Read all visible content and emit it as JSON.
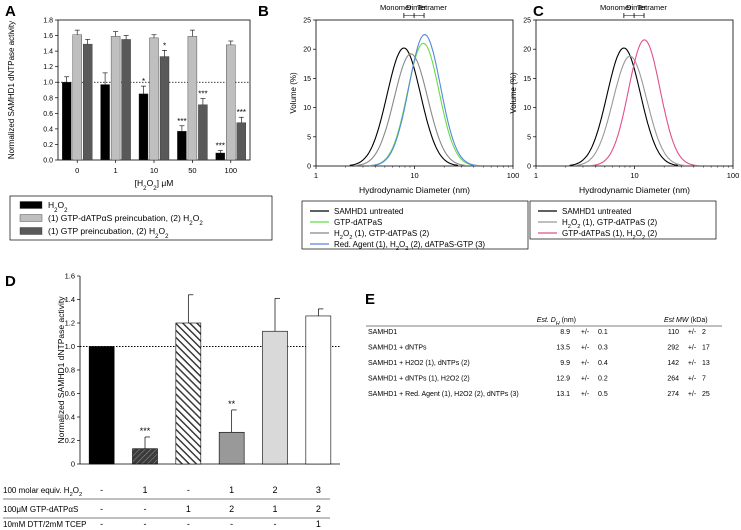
{
  "panel_letters": [
    "A",
    "B",
    "C",
    "D",
    "E"
  ],
  "chart_data": [
    {
      "panel": "A",
      "type": "bar",
      "ylabel": "Normalized SAMHD1 dNTPase activity",
      "xlabel_parts": [
        "[H",
        "2",
        "O",
        "2",
        "] μM"
      ],
      "categories": [
        "0",
        "1",
        "10",
        "50",
        "100"
      ],
      "ylim": [
        0,
        1.8
      ],
      "yticks": [
        "0.0",
        "0.2",
        "0.4",
        "0.6",
        "0.8",
        "1.0",
        "1.2",
        "1.4",
        "1.6",
        "1.8"
      ],
      "reference_line": 1.0,
      "series": [
        {
          "name": "H2O2",
          "color": "#000000",
          "values": [
            1.0,
            0.97,
            0.85,
            0.37,
            0.09
          ],
          "errors": [
            0.07,
            0.15,
            0.1,
            0.07,
            0.03
          ],
          "stars": [
            "",
            "",
            "*",
            "***",
            "***"
          ]
        },
        {
          "name": "(1) GTP-dATPαS preincubation, (2) H2O2",
          "color": "#bfbfbf",
          "values": [
            1.61,
            1.59,
            1.57,
            1.59,
            1.48
          ],
          "errors": [
            0.06,
            0.06,
            0.04,
            0.08,
            0.05
          ],
          "stars": [
            "",
            "",
            "",
            "",
            ""
          ]
        },
        {
          "name": "(1) GTP preincubation, (2) H2O2",
          "color": "#595959",
          "values": [
            1.49,
            1.55,
            1.33,
            0.71,
            0.48
          ],
          "errors": [
            0.06,
            0.05,
            0.08,
            0.08,
            0.07
          ],
          "stars": [
            "",
            "",
            "*",
            "***",
            "***"
          ]
        }
      ],
      "legend": [
        {
          "parts": [
            "H",
            "2",
            "O",
            "2"
          ]
        },
        {
          "parts": [
            "(1) GTP-dATPαS preincubation, (2) H",
            "2",
            "O",
            "2"
          ]
        },
        {
          "parts": [
            "(1) GTP preincubation, (2) H",
            "2",
            "O",
            "2"
          ]
        }
      ]
    },
    {
      "panel": "B",
      "type": "line",
      "xscale": "log",
      "xlabel": "Hydrodynamic Diameter (nm)",
      "ylabel": "Volume (%)",
      "xlim": [
        1,
        100
      ],
      "ylim": [
        0,
        25
      ],
      "xticks": [
        "1",
        "10",
        "100"
      ],
      "yticks": [
        "0",
        "5",
        "10",
        "15",
        "20",
        "25"
      ],
      "markers": [
        {
          "label": "Monomer",
          "x": 7.8
        },
        {
          "label": "Dimer",
          "x": 9.9
        },
        {
          "label": "Tetramer",
          "x": 12.5
        }
      ],
      "series": [
        {
          "name": "SAMHD1 untreated",
          "color": "#000000",
          "peak_x": 7.8,
          "peak_y": 20.2,
          "log_sigma": 0.17
        },
        {
          "name": "GTP-dATPaS",
          "color": "#66dd44",
          "peak_x": 12.3,
          "peak_y": 21.0,
          "log_sigma": 0.16
        },
        {
          "name": "H2O2 (1), GTP-dATPaS (2)",
          "color": "#888888",
          "peak_x": 9.2,
          "peak_y": 19.2,
          "log_sigma": 0.17
        },
        {
          "name": "Red. Agent (1), H2O2 (2), dATPaS-GTP (3)",
          "color": "#5588dd",
          "peak_x": 12.7,
          "peak_y": 22.5,
          "log_sigma": 0.16
        }
      ],
      "legend": [
        {
          "parts": [
            "SAMHD1 untreated"
          ]
        },
        {
          "parts": [
            "GTP-dATPaS"
          ]
        },
        {
          "parts": [
            "H",
            "2",
            "O",
            "2",
            " (1), GTP-dATPaS (2)"
          ]
        },
        {
          "parts": [
            "Red. Agent (1), H",
            "2",
            "O",
            "2",
            " (2), dATPaS-GTP (3)"
          ]
        }
      ]
    },
    {
      "panel": "C",
      "type": "line",
      "xscale": "log",
      "xlabel": "Hydrodynamic Diameter (nm)",
      "ylabel": "Volume (%)",
      "xlim": [
        1,
        100
      ],
      "ylim": [
        0,
        25
      ],
      "xticks": [
        "1",
        "10",
        "100"
      ],
      "yticks": [
        "0",
        "5",
        "10",
        "15",
        "20",
        "25"
      ],
      "markers": [
        {
          "label": "Monomer",
          "x": 7.8
        },
        {
          "label": "Dimer",
          "x": 9.9
        },
        {
          "label": "Tetramer",
          "x": 12.5
        }
      ],
      "series": [
        {
          "name": "SAMHD1 untreated",
          "color": "#000000",
          "peak_x": 7.8,
          "peak_y": 20.2,
          "log_sigma": 0.17
        },
        {
          "name": "H2O2 (1), GTP-dATPaS (2)",
          "color": "#999999",
          "peak_x": 9.0,
          "peak_y": 18.8,
          "log_sigma": 0.17
        },
        {
          "name": "GTP-dATPaS (1), H2O2 (2)",
          "color": "#e0508c",
          "peak_x": 12.6,
          "peak_y": 21.6,
          "log_sigma": 0.16
        }
      ],
      "legend": [
        {
          "parts": [
            "SAMHD1 untreated"
          ]
        },
        {
          "parts": [
            "H",
            "2",
            "O",
            "2",
            " (1), GTP-dATPaS (2)"
          ]
        },
        {
          "parts": [
            "GTP-dATPaS (1), H",
            "2",
            "O",
            "2",
            " (2)"
          ]
        }
      ]
    },
    {
      "panel": "D",
      "type": "bar",
      "ylabel": "Normalized SAMHD1 dNTPase activity",
      "ylim": [
        0,
        1.6
      ],
      "yticks": [
        "0",
        "0.2",
        "0.4",
        "0.6",
        "0.8",
        "1.0",
        "1.2",
        "1.4",
        "1.6"
      ],
      "reference_line": 1.0,
      "bars": [
        {
          "value": 1.0,
          "error": 0.0,
          "fill": "#000000",
          "pattern": "",
          "stars": ""
        },
        {
          "value": 0.13,
          "error": 0.1,
          "fill": "#4a4a4a",
          "pattern": "hatch-dense",
          "stars": "***"
        },
        {
          "value": 1.2,
          "error": 0.24,
          "fill": "#5a5a5a",
          "pattern": "hatch-stripes",
          "stars": ""
        },
        {
          "value": 0.27,
          "error": 0.19,
          "fill": "#999999",
          "pattern": "",
          "stars": "**"
        },
        {
          "value": 1.13,
          "error": 0.28,
          "fill": "#d9d9d9",
          "pattern": "",
          "stars": ""
        },
        {
          "value": 1.26,
          "error": 0.06,
          "fill": "#ffffff",
          "pattern": "",
          "stars": ""
        }
      ],
      "conditions": [
        {
          "label_parts": [
            "100 molar equiv. H",
            "2",
            "O",
            "2"
          ],
          "values": [
            "-",
            "1",
            "-",
            "1",
            "2",
            "3"
          ]
        },
        {
          "label_parts": [
            "100μM GTP-dATPαS"
          ],
          "values": [
            "-",
            "-",
            "1",
            "2",
            "1",
            "2"
          ]
        },
        {
          "label_parts": [
            "10mM DTT/2mM TCEP"
          ],
          "values": [
            "-",
            "-",
            "-",
            "-",
            "-",
            "1"
          ]
        }
      ]
    },
    {
      "panel": "E",
      "type": "table",
      "header": {
        "dh_label": "Est. D",
        "dh_sub": "H",
        "dh_unit": " (nm)",
        "mw_label": "Est MW",
        "mw_unit": " (kDa)"
      },
      "rows": [
        {
          "label": "SAMHD1",
          "dh": "8.9",
          "dh_pm": "+/-",
          "dh_err": "0.1",
          "mw": "110",
          "mw_pm": "+/-",
          "mw_err": "2"
        },
        {
          "label": "SAMHD1 + dNTPs",
          "dh": "13.5",
          "dh_pm": "+/-",
          "dh_err": "0.3",
          "mw": "292",
          "mw_pm": "+/-",
          "mw_err": "17"
        },
        {
          "label": "SAMHD1 + H2O2 (1), dNTPs (2)",
          "dh": "9.9",
          "dh_pm": "+/-",
          "dh_err": "0.4",
          "mw": "142",
          "mw_pm": "+/-",
          "mw_err": "13"
        },
        {
          "label": "SAMHD1 + dNTPs (1), H2O2 (2)",
          "dh": "12.9",
          "dh_pm": "+/-",
          "dh_err": "0.2",
          "mw": "264",
          "mw_pm": "+/-",
          "mw_err": "7"
        },
        {
          "label": "SAMHD1 + Red. Agent (1), H2O2 (2), dNTPs (3)",
          "dh": "13.1",
          "dh_pm": "+/-",
          "dh_err": "0.5",
          "mw": "274",
          "mw_pm": "+/-",
          "mw_err": "25"
        }
      ]
    }
  ]
}
